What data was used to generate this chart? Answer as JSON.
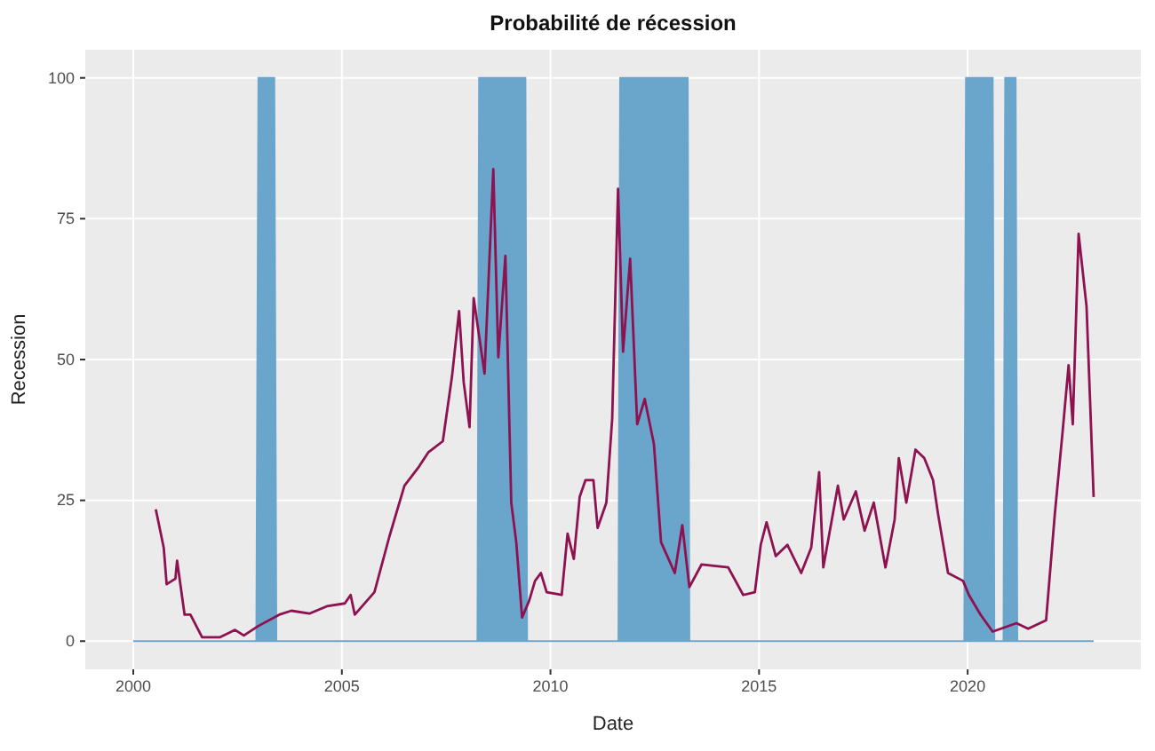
{
  "chart_data": {
    "type": "line",
    "title": "Probabilité de récession",
    "xlabel": "Date",
    "ylabel": "Recession",
    "xlim": [
      1998.85,
      2024.15
    ],
    "ylim": [
      -5,
      105
    ],
    "xticks": [
      2000,
      2005,
      2010,
      2015,
      2020
    ],
    "yticks": [
      0,
      25,
      50,
      75,
      100
    ],
    "grid": true,
    "series": [
      {
        "type": "area",
        "color": "#6aa5cc",
        "x": [
          2000,
          2002.95,
          2003.0,
          2003.38,
          2003.43,
          2008.25,
          2008.29,
          2009.4,
          2009.44,
          2011.63,
          2011.67,
          2013.29,
          2013.33,
          2019.92,
          2019.96,
          2020.6,
          2020.64,
          2020.86,
          2020.9,
          2021.15,
          2021.19,
          2023.02
        ],
        "values": [
          0,
          0,
          100,
          100,
          0,
          0,
          100,
          100,
          0,
          0,
          100,
          100,
          0,
          0,
          100,
          100,
          0,
          0,
          100,
          100,
          0,
          0
        ]
      },
      {
        "color": "#8e1150",
        "x": [
          2000.54,
          2000.73,
          2000.8,
          2001.01,
          2001.05,
          2001.23,
          2001.37,
          2001.65,
          2002.08,
          2002.44,
          2002.65,
          2003.0,
          2003.5,
          2003.79,
          2004.22,
          2004.64,
          2005.07,
          2005.21,
          2005.31,
          2005.78,
          2006.14,
          2006.5,
          2006.85,
          2007.07,
          2007.42,
          2007.64,
          2007.81,
          2007.92,
          2008.06,
          2008.16,
          2008.42,
          2008.63,
          2008.75,
          2008.92,
          2009.06,
          2009.18,
          2009.32,
          2009.49,
          2009.63,
          2009.77,
          2009.91,
          2010.27,
          2010.41,
          2010.56,
          2010.7,
          2010.84,
          2011.03,
          2011.13,
          2011.34,
          2011.48,
          2011.62,
          2011.74,
          2011.91,
          2012.08,
          2012.26,
          2012.48,
          2012.65,
          2012.98,
          2013.16,
          2013.33,
          2013.62,
          2014.26,
          2014.62,
          2014.9,
          2015.04,
          2015.18,
          2015.4,
          2015.68,
          2016.01,
          2016.25,
          2016.44,
          2016.54,
          2016.89,
          2017.03,
          2017.32,
          2017.53,
          2017.75,
          2018.03,
          2018.25,
          2018.35,
          2018.53,
          2018.75,
          2018.96,
          2019.17,
          2019.29,
          2019.53,
          2019.89,
          2020.03,
          2020.31,
          2020.6,
          2021.17,
          2021.45,
          2021.88,
          2022.09,
          2022.28,
          2022.42,
          2022.52,
          2022.66,
          2022.85,
          2023.02
        ],
        "values": [
          23.4,
          16.6,
          10.1,
          11.1,
          14.3,
          4.7,
          4.7,
          0.7,
          0.7,
          2,
          1,
          2.7,
          4.7,
          5.4,
          4.9,
          6.2,
          6.7,
          8.2,
          4.7,
          8.7,
          18.6,
          27.6,
          31,
          33.5,
          35.5,
          47,
          58.6,
          46,
          38,
          60.9,
          47.5,
          83.8,
          50.4,
          68.4,
          24.6,
          17.6,
          4.2,
          7.2,
          10.7,
          12.1,
          8.7,
          8.2,
          19.1,
          14.6,
          25.6,
          28.6,
          28.6,
          20.1,
          24.6,
          39.5,
          80.3,
          51.4,
          67.9,
          38.5,
          43,
          35,
          17.6,
          12.1,
          20.6,
          9.6,
          13.6,
          13.1,
          8.2,
          8.7,
          17.1,
          21.1,
          15.1,
          17.1,
          12.1,
          16.6,
          30,
          13.1,
          27.6,
          21.6,
          26.6,
          19.6,
          24.6,
          13.1,
          21.6,
          32.5,
          24.6,
          34,
          32.5,
          28.6,
          22.6,
          12.1,
          10.7,
          8.2,
          4.7,
          1.7,
          3.2,
          2.2,
          3.7,
          22.6,
          37.5,
          49,
          38.5,
          72.3,
          59.4,
          25.6
        ]
      }
    ]
  }
}
